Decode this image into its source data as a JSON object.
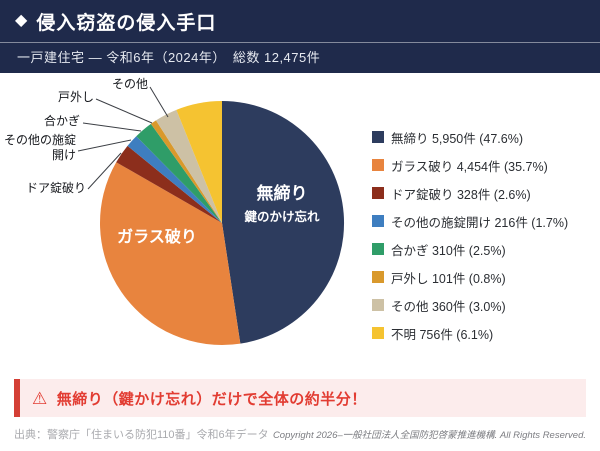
{
  "header": {
    "diamond_icon": "◆",
    "title": "侵入窃盗の侵入手口",
    "subtitle": "一戸建住宅 — 令和6年（2024年）　総数 12,475件"
  },
  "chart_data": {
    "type": "pie",
    "title": "侵入窃盗の侵入手口",
    "subtitle": "一戸建住宅 — 令和6年（2024年） 総数 12,475件",
    "total_label": "総数 12,475件",
    "start_angle_deg": -90,
    "direction": "clockwise",
    "legend_position": "right",
    "slices": [
      {
        "label": "無締り",
        "count": 5950,
        "percent": 47.6,
        "color": "#2d3c5e",
        "legend": "無締り 5,950件 (47.6%)"
      },
      {
        "label": "ガラス破り",
        "count": 4454,
        "percent": 35.7,
        "color": "#e8843e",
        "legend": "ガラス破り 4,454件 (35.7%)"
      },
      {
        "label": "ドア錠破り",
        "count": 328,
        "percent": 2.6,
        "color": "#8c2e1c",
        "legend": "ドア錠破り 328件 (2.6%)"
      },
      {
        "label": "その他の施錠開け",
        "count": 216,
        "percent": 1.7,
        "color": "#3e7ec0",
        "legend": "その他の施錠開け 216件 (1.7%)"
      },
      {
        "label": "合かぎ",
        "count": 310,
        "percent": 2.5,
        "color": "#2f9d68",
        "legend": "合かぎ 310件 (2.5%)"
      },
      {
        "label": "戸外し",
        "count": 101,
        "percent": 0.8,
        "color": "#d9992c",
        "legend": "戸外し 101件 (0.8%)"
      },
      {
        "label": "その他",
        "count": 360,
        "percent": 3.0,
        "color": "#cdc1a5",
        "legend": "その他 360件 (3.0%)"
      },
      {
        "label": "不明",
        "count": 756,
        "percent": 6.1,
        "color": "#f5c331",
        "legend": "不明 756件 (6.1%)"
      }
    ],
    "inner_labels": [
      {
        "line1": "無締り",
        "line2": "鍵のかけ忘れ"
      },
      {
        "line1": "ガラス破り"
      }
    ],
    "callout_labels": [
      "その他",
      "戸外し",
      "合かぎ",
      "その他の施錠開け",
      "ドア錠破り"
    ]
  },
  "highlight": {
    "warning_icon": "⚠",
    "text": "無締り（鍵かけ忘れ）だけで全体の約半分！"
  },
  "footer": {
    "source": "出典：警察庁「住まいる防犯110番」令和6年データ",
    "copyright": "Copyright 2026–一般社団法人全国防犯啓蒙推進機構. All Rights Reserved."
  }
}
